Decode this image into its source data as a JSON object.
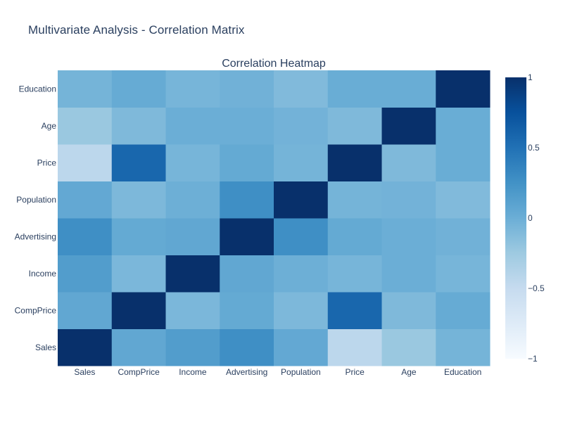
{
  "page_title": "Multivariate Analysis - Correlation Matrix",
  "chart_data": {
    "type": "heatmap",
    "title": "Correlation Heatmap",
    "x": [
      "Sales",
      "CompPrice",
      "Income",
      "Advertising",
      "Population",
      "Price",
      "Age",
      "Education"
    ],
    "y": [
      "Sales",
      "CompPrice",
      "Income",
      "Advertising",
      "Population",
      "Price",
      "Age",
      "Education"
    ],
    "z": [
      [
        1.0,
        0.06,
        0.15,
        0.27,
        0.05,
        -0.44,
        -0.23,
        -0.05
      ],
      [
        0.06,
        1.0,
        -0.08,
        0.04,
        -0.09,
        0.58,
        -0.1,
        0.03
      ],
      [
        0.15,
        -0.08,
        1.0,
        0.06,
        -0.01,
        -0.06,
        0.0,
        -0.06
      ],
      [
        0.27,
        0.04,
        0.06,
        1.0,
        0.27,
        0.04,
        0.0,
        -0.03
      ],
      [
        0.05,
        -0.09,
        -0.01,
        0.27,
        1.0,
        -0.05,
        -0.04,
        -0.11
      ],
      [
        -0.44,
        0.58,
        -0.06,
        0.04,
        -0.05,
        1.0,
        -0.1,
        0.01
      ],
      [
        -0.23,
        -0.1,
        0.0,
        0.0,
        -0.04,
        -0.1,
        1.0,
        0.01
      ],
      [
        -0.05,
        0.03,
        -0.06,
        -0.03,
        -0.11,
        0.01,
        0.01,
        1.0
      ]
    ],
    "zmin": -1,
    "zmax": 1,
    "colorscale": [
      [
        0.0,
        "#f7fbff"
      ],
      [
        0.125,
        "#deebf7"
      ],
      [
        0.25,
        "#c6dbef"
      ],
      [
        0.375,
        "#9ecae1"
      ],
      [
        0.5,
        "#6baed6"
      ],
      [
        0.625,
        "#4292c6"
      ],
      [
        0.75,
        "#2171b5"
      ],
      [
        0.875,
        "#08519c"
      ],
      [
        1.0,
        "#08306b"
      ]
    ],
    "colorbar_ticks": [
      1,
      0.5,
      0,
      -0.5,
      -1
    ],
    "colorbar_tick_labels": [
      "1",
      "0.5",
      "0",
      "−0.5",
      "−1"
    ]
  }
}
